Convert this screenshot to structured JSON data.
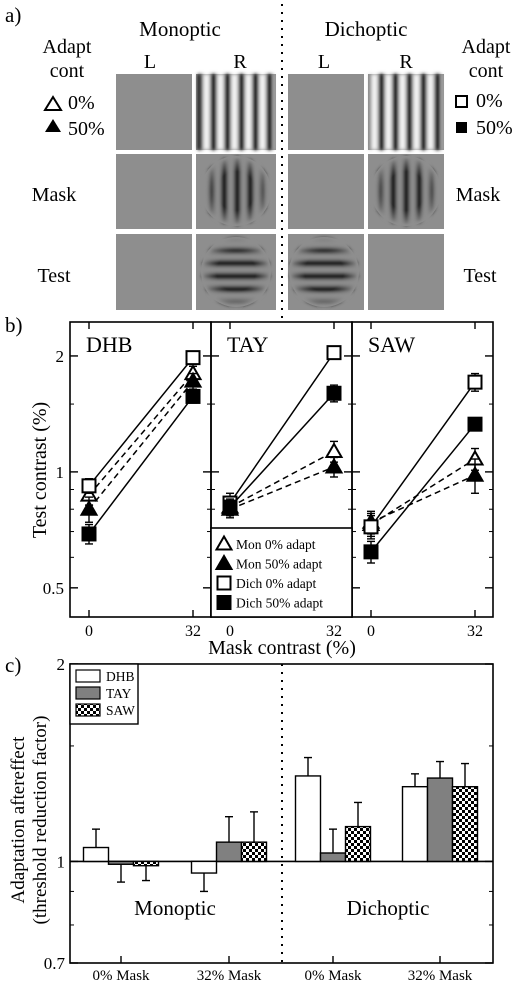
{
  "panel_a": {
    "label": "a)",
    "monoptic_title": "Monoptic",
    "dichoptic_title": "Dichoptic",
    "eye_left": "L",
    "eye_right": "R",
    "adapt_title_1": "Adapt",
    "adapt_title_2": "cont",
    "adapt_zero": "0%",
    "adapt_fifty": "50%",
    "row_mask": "Mask",
    "row_test": "Test",
    "colors": {
      "background": "#8e8e8e"
    }
  },
  "chart_data": [
    {
      "type": "line",
      "panel_label": "b)",
      "ylabel": "Test contrast (%)",
      "xlabel": "Mask contrast (%)",
      "x_ticks": [
        "0",
        "32"
      ],
      "y_ticks": [
        "0.5",
        "1",
        "2"
      ],
      "ylim": [
        0.42,
        2.45
      ],
      "yscale": "log",
      "legend": {
        "placement": "bottom (TAY panel)",
        "entries": [
          "Mon 0% adapt",
          "Mon 50% adapt",
          "Dich 0% adapt",
          "Dich 50% adapt"
        ]
      },
      "panels": [
        {
          "title": "DHB",
          "series": [
            {
              "marker": "triangle-open",
              "dashed": true,
              "values": [
                0.87,
                1.8
              ],
              "errors": [
                0.05,
                0.08
              ]
            },
            {
              "marker": "triangle-filled",
              "dashed": true,
              "values": [
                0.8,
                1.72
              ],
              "errors": [
                0.06,
                0.08
              ]
            },
            {
              "marker": "square-open",
              "dashed": false,
              "values": [
                0.92,
                1.98
              ],
              "errors": [
                0.04,
                0.06
              ]
            },
            {
              "marker": "square-filled",
              "dashed": false,
              "values": [
                0.69,
                1.57
              ],
              "errors": [
                0.04,
                0.06
              ]
            }
          ]
        },
        {
          "title": "TAY",
          "series": [
            {
              "marker": "triangle-open",
              "dashed": true,
              "values": [
                0.81,
                1.13
              ],
              "errors": [
                0.04,
                0.07
              ]
            },
            {
              "marker": "triangle-filled",
              "dashed": true,
              "values": [
                0.8,
                1.03
              ],
              "errors": [
                0.04,
                0.06
              ]
            },
            {
              "marker": "square-open",
              "dashed": false,
              "values": [
                0.83,
                2.04
              ],
              "errors": [
                0.05,
                0.07
              ]
            },
            {
              "marker": "square-filled",
              "dashed": false,
              "values": [
                0.81,
                1.6
              ],
              "errors": [
                0.04,
                0.08
              ]
            }
          ]
        },
        {
          "title": "SAW",
          "series": [
            {
              "marker": "triangle-open",
              "dashed": true,
              "values": [
                0.73,
                1.08
              ],
              "errors": [
                0.05,
                0.07
              ]
            },
            {
              "marker": "triangle-filled",
              "dashed": true,
              "values": [
                0.74,
                0.98
              ],
              "errors": [
                0.05,
                0.1
              ]
            },
            {
              "marker": "square-open",
              "dashed": false,
              "values": [
                0.72,
                1.71
              ],
              "errors": [
                0.05,
                0.09
              ]
            },
            {
              "marker": "square-filled",
              "dashed": false,
              "values": [
                0.62,
                1.33
              ],
              "errors": [
                0.04,
                0.05
              ]
            }
          ]
        }
      ]
    },
    {
      "type": "bar",
      "panel_label": "c)",
      "ylabel": "Adaptation aftereffect",
      "ylabel2": "(threshold reduction factor)",
      "yscale": "log",
      "ylim": [
        0.7,
        2
      ],
      "y_ticks": [
        "0.7",
        "1",
        "2"
      ],
      "categories": [
        "0% Mask",
        "32% Mask",
        "0% Mask",
        "32% Mask"
      ],
      "group_labels": [
        "Monoptic",
        "Dichoptic"
      ],
      "legend": {
        "placement": "top-left"
      },
      "series": [
        {
          "name": "DHB",
          "fill": "white",
          "values": [
            1.05,
            0.96,
            1.35,
            1.3
          ],
          "errors": [
            0.07,
            0.06,
            0.09,
            0.06
          ]
        },
        {
          "name": "TAY",
          "fill": "gray",
          "values": [
            0.99,
            1.07,
            1.03,
            1.34
          ],
          "errors": [
            0.06,
            0.1,
            0.09,
            0.08
          ]
        },
        {
          "name": "SAW",
          "fill": "checker",
          "values": [
            0.985,
            1.07,
            1.13,
            1.3
          ],
          "errors": [
            0.05,
            0.12,
            0.1,
            0.11
          ]
        }
      ]
    }
  ]
}
